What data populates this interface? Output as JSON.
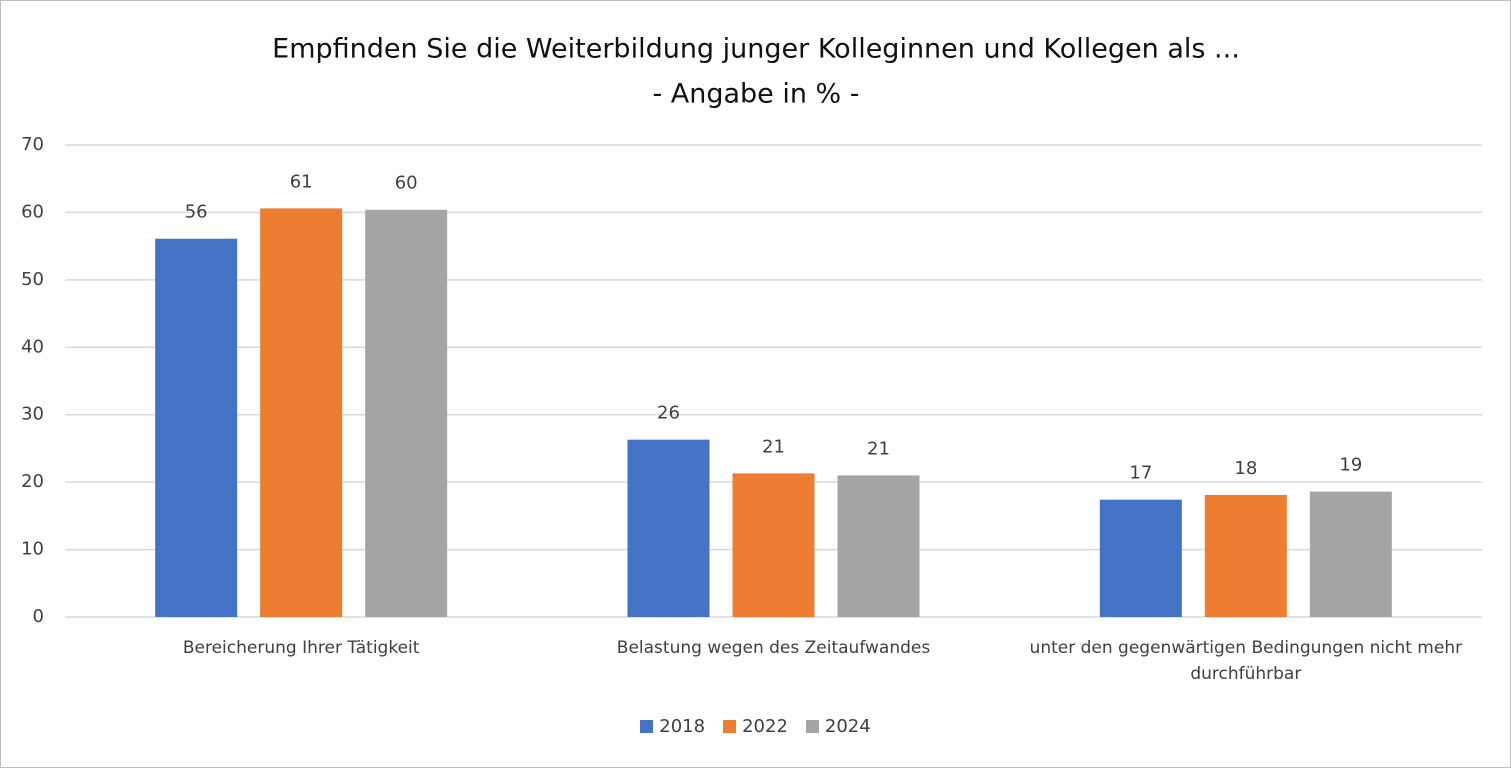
{
  "chart_data": {
    "type": "bar",
    "title": "Empfinden Sie die Weiterbildung junger Kolleginnen und Kollegen als ...",
    "subtitle": "- Angabe in % -",
    "categories": [
      "Bereicherung Ihrer Tätigkeit",
      "Belastung wegen des Zeitaufwandes",
      "unter den gegenwärtigen Bedingungen nicht mehr durchführbar"
    ],
    "series": [
      {
        "name": "2018",
        "color": "#4472c4",
        "values": [
          56.1,
          26.3,
          17.4
        ],
        "value_labels": [
          "56",
          "26",
          "17"
        ]
      },
      {
        "name": "2022",
        "color": "#ed7d31",
        "values": [
          60.6,
          21.3,
          18.1
        ],
        "value_labels": [
          "61",
          "21",
          "18"
        ]
      },
      {
        "name": "2024",
        "color": "#a5a5a5",
        "values": [
          60.4,
          21.0,
          18.6
        ],
        "value_labels": [
          "60",
          "21",
          "19"
        ]
      }
    ],
    "ylim": [
      0,
      70
    ],
    "yticks": [
      0,
      10,
      20,
      30,
      40,
      50,
      60,
      70
    ],
    "grid": true,
    "legend": "bottom"
  }
}
